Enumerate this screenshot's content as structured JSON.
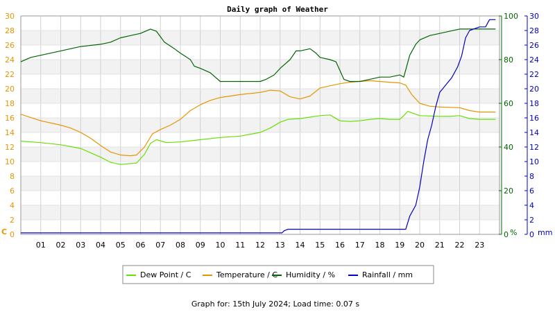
{
  "chart_data": {
    "type": "line",
    "title": "Daily graph of Weather",
    "footer": "Graph for: 15th July 2024; Load time: 0.07 s",
    "x_ticks": [
      "01",
      "02",
      "03",
      "04",
      "05",
      "06",
      "07",
      "08",
      "09",
      "10",
      "11",
      "12",
      "13",
      "14",
      "15",
      "16",
      "17",
      "18",
      "19",
      "20",
      "21",
      "22",
      "23"
    ],
    "xlim": [
      0,
      24
    ],
    "axes": {
      "temperature": {
        "unit": "C",
        "range": [
          0,
          30
        ],
        "ticks": [
          0,
          2,
          4,
          6,
          8,
          10,
          12,
          14,
          16,
          18,
          20,
          22,
          24,
          26,
          28,
          30
        ],
        "color": "#e69500"
      },
      "humidity": {
        "unit": "%",
        "range": [
          0,
          100
        ],
        "ticks": [
          0,
          20,
          40,
          60,
          80,
          100
        ],
        "color": "#006400"
      },
      "rainfall": {
        "unit": "mm",
        "range": [
          0,
          30
        ],
        "ticks": [
          0,
          2,
          4,
          6,
          8,
          10,
          12,
          14,
          16,
          18,
          20,
          22,
          24,
          26,
          28,
          30
        ],
        "color": "#0000c0"
      }
    },
    "series": [
      {
        "name": "Dew Point / C",
        "axis": "temperature",
        "color": "#66e000",
        "points": [
          [
            0,
            12.8
          ],
          [
            1,
            12.6
          ],
          [
            2,
            12.3
          ],
          [
            3,
            11.8
          ],
          [
            4,
            10.6
          ],
          [
            4.5,
            9.9
          ],
          [
            5,
            9.6
          ],
          [
            5.8,
            9.8
          ],
          [
            6.2,
            11.0
          ],
          [
            6.5,
            12.5
          ],
          [
            6.8,
            13.0
          ],
          [
            7.3,
            12.6
          ],
          [
            8,
            12.7
          ],
          [
            9,
            13.0
          ],
          [
            10,
            13.3
          ],
          [
            11,
            13.5
          ],
          [
            11.6,
            13.8
          ],
          [
            12,
            14.0
          ],
          [
            12.5,
            14.6
          ],
          [
            13,
            15.4
          ],
          [
            13.4,
            15.8
          ],
          [
            14,
            15.9
          ],
          [
            15,
            16.3
          ],
          [
            15.5,
            16.4
          ],
          [
            16,
            15.6
          ],
          [
            16.5,
            15.5
          ],
          [
            17,
            15.6
          ],
          [
            17.5,
            15.8
          ],
          [
            18,
            15.9
          ],
          [
            18.5,
            15.8
          ],
          [
            19,
            15.8
          ],
          [
            19.2,
            16.3
          ],
          [
            19.4,
            16.9
          ],
          [
            20,
            16.3
          ],
          [
            21,
            16.2
          ],
          [
            21.5,
            16.2
          ],
          [
            22,
            16.3
          ],
          [
            22.5,
            15.9
          ],
          [
            23,
            15.8
          ],
          [
            23.8,
            15.8
          ]
        ]
      },
      {
        "name": "Temperature / C",
        "axis": "temperature",
        "color": "#e69500",
        "points": [
          [
            0,
            16.5
          ],
          [
            1,
            15.6
          ],
          [
            2,
            15.0
          ],
          [
            2.5,
            14.6
          ],
          [
            3,
            14.0
          ],
          [
            3.5,
            13.2
          ],
          [
            4,
            12.2
          ],
          [
            4.5,
            11.3
          ],
          [
            5,
            10.9
          ],
          [
            5.5,
            10.8
          ],
          [
            5.8,
            10.9
          ],
          [
            6.2,
            12.0
          ],
          [
            6.6,
            13.8
          ],
          [
            7,
            14.4
          ],
          [
            7.5,
            15.0
          ],
          [
            8,
            15.8
          ],
          [
            8.5,
            17.0
          ],
          [
            9,
            17.8
          ],
          [
            9.5,
            18.4
          ],
          [
            10,
            18.8
          ],
          [
            11,
            19.2
          ],
          [
            12,
            19.5
          ],
          [
            12.5,
            19.8
          ],
          [
            13,
            19.7
          ],
          [
            13.5,
            18.9
          ],
          [
            14,
            18.6
          ],
          [
            14.5,
            19.0
          ],
          [
            15,
            20.1
          ],
          [
            15.5,
            20.4
          ],
          [
            16,
            20.7
          ],
          [
            16.5,
            20.9
          ],
          [
            17,
            21.0
          ],
          [
            17.5,
            21.1
          ],
          [
            18,
            21.0
          ],
          [
            18.5,
            20.9
          ],
          [
            19,
            20.8
          ],
          [
            19.3,
            20.5
          ],
          [
            19.6,
            19.2
          ],
          [
            20,
            18.0
          ],
          [
            20.5,
            17.6
          ],
          [
            21,
            17.5
          ],
          [
            22,
            17.4
          ],
          [
            22.5,
            17.0
          ],
          [
            23,
            16.8
          ],
          [
            23.8,
            16.8
          ]
        ]
      },
      {
        "name": "Humidity / %",
        "axis": "humidity",
        "color": "#006400",
        "points": [
          [
            0,
            79
          ],
          [
            0.5,
            81
          ],
          [
            1,
            82
          ],
          [
            2,
            84
          ],
          [
            3,
            86
          ],
          [
            4,
            87
          ],
          [
            4.5,
            88
          ],
          [
            5,
            90
          ],
          [
            5.5,
            91
          ],
          [
            6,
            92
          ],
          [
            6.5,
            94
          ],
          [
            6.8,
            93
          ],
          [
            7.2,
            88
          ],
          [
            7.7,
            85
          ],
          [
            8,
            83
          ],
          [
            8.5,
            80
          ],
          [
            8.7,
            77
          ],
          [
            9,
            76
          ],
          [
            9.5,
            74
          ],
          [
            10,
            70
          ],
          [
            10.5,
            70
          ],
          [
            11,
            70
          ],
          [
            12,
            70
          ],
          [
            12.3,
            71
          ],
          [
            12.7,
            73
          ],
          [
            13,
            76
          ],
          [
            13.5,
            80
          ],
          [
            13.8,
            84
          ],
          [
            14,
            84
          ],
          [
            14.5,
            85
          ],
          [
            14.8,
            83
          ],
          [
            15,
            81
          ],
          [
            15.5,
            80
          ],
          [
            15.8,
            79
          ],
          [
            16,
            75
          ],
          [
            16.2,
            71
          ],
          [
            16.5,
            70
          ],
          [
            17,
            70
          ],
          [
            17.5,
            71
          ],
          [
            18,
            72
          ],
          [
            18.5,
            72
          ],
          [
            19,
            73
          ],
          [
            19.2,
            72
          ],
          [
            19.5,
            82
          ],
          [
            19.8,
            87
          ],
          [
            20,
            89
          ],
          [
            20.5,
            91
          ],
          [
            21,
            92
          ],
          [
            21.5,
            93
          ],
          [
            22,
            94
          ],
          [
            22.5,
            94
          ],
          [
            23,
            94
          ],
          [
            23.8,
            94
          ]
        ]
      },
      {
        "name": "Rainfall / mm",
        "axis": "rainfall",
        "color": "#0000c0",
        "points": [
          [
            0,
            0.2
          ],
          [
            13.1,
            0.2
          ],
          [
            13.2,
            0.5
          ],
          [
            13.4,
            0.7
          ],
          [
            14,
            0.7
          ],
          [
            16,
            0.7
          ],
          [
            17,
            0.7
          ],
          [
            18,
            0.7
          ],
          [
            19.0,
            0.7
          ],
          [
            19.3,
            0.7
          ],
          [
            19.5,
            2.5
          ],
          [
            19.8,
            4.0
          ],
          [
            20,
            6.5
          ],
          [
            20.2,
            10.0
          ],
          [
            20.4,
            13.0
          ],
          [
            20.6,
            15.0
          ],
          [
            20.8,
            17.5
          ],
          [
            21,
            19.5
          ],
          [
            21.3,
            20.5
          ],
          [
            21.6,
            21.5
          ],
          [
            21.9,
            23.0
          ],
          [
            22.1,
            24.5
          ],
          [
            22.3,
            27.0
          ],
          [
            22.5,
            28.0
          ],
          [
            23,
            28.5
          ],
          [
            23.3,
            28.5
          ],
          [
            23.5,
            29.5
          ],
          [
            23.8,
            29.5
          ]
        ]
      }
    ],
    "legend": {
      "placement": "bottom-center"
    }
  },
  "labels": {
    "left_unit": "C",
    "humidity_unit": "%",
    "rain_unit": "mm"
  }
}
